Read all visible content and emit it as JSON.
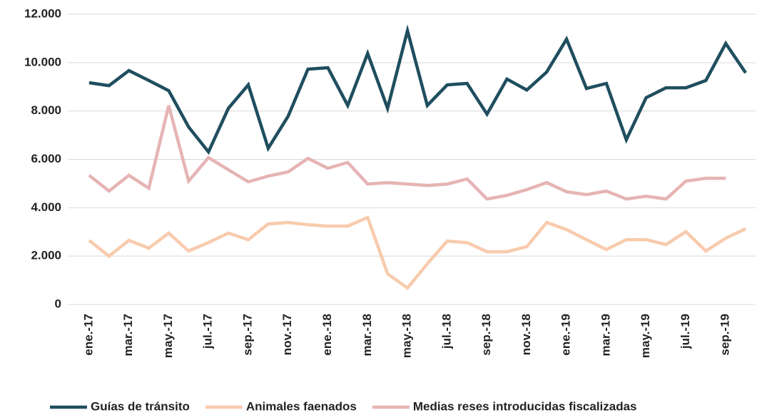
{
  "chart_data": {
    "type": "line",
    "categories": [
      "ene.-17",
      null,
      "mar.-17",
      null,
      "may.-17",
      null,
      "jul.-17",
      null,
      "sep.-17",
      null,
      "nov.-17",
      null,
      "ene.-18",
      null,
      "mar.-18",
      null,
      "may.-18",
      null,
      "jul.-18",
      null,
      "sep.-18",
      null,
      "nov.-18",
      null,
      "ene.-19",
      null,
      "mar.-19",
      null,
      "may.-19",
      null,
      "jul.-19",
      null,
      "sep.-19",
      null
    ],
    "series": [
      {
        "name": "Guías de tránsito",
        "color": "#1f4e5f",
        "values": [
          9170,
          9050,
          9670,
          9260,
          8840,
          7340,
          6310,
          8110,
          9080,
          6460,
          7780,
          9730,
          9790,
          8230,
          10380,
          8110,
          11320,
          8230,
          9080,
          9140,
          7870,
          9320,
          8870,
          9610,
          10970,
          8930,
          9140,
          6810,
          8550,
          8960,
          8960,
          9260,
          10790,
          9580
        ]
      },
      {
        "name": "Animales faenados",
        "color": "#f8cbad",
        "values": [
          2650,
          2000,
          2650,
          2330,
          2950,
          2210,
          2560,
          2950,
          2680,
          3330,
          3390,
          3300,
          3240,
          3240,
          3600,
          1270,
          680,
          1680,
          2620,
          2560,
          2180,
          2180,
          2390,
          3390,
          3100,
          2680,
          2270,
          2680,
          2680,
          2480,
          3010,
          2210,
          2740,
          3130
        ]
      },
      {
        "name": "Medias reses introducidas fiscalizadas",
        "color": "#e6b4b4",
        "values": [
          5340,
          4690,
          5340,
          4810,
          8230,
          5100,
          6070,
          5570,
          5070,
          5310,
          5480,
          6040,
          5630,
          5870,
          4980,
          5040,
          4980,
          4920,
          4980,
          5190,
          4360,
          4510,
          4750,
          5040,
          4660,
          4540,
          4690,
          4360,
          4480,
          4360,
          5100,
          5220,
          5220,
          null
        ]
      }
    ],
    "ylim": [
      0,
      12000
    ],
    "yticks": [
      0,
      {
        "value": 2000,
        "label": "2.000"
      },
      {
        "value": 4000,
        "label": "4.000"
      },
      {
        "value": 6000,
        "label": "6.000"
      },
      {
        "value": 8000,
        "label": "8.000"
      },
      {
        "value": 10000,
        "label": "10.000"
      },
      {
        "value": 12000,
        "label": "12.000"
      }
    ],
    "grid": true
  }
}
